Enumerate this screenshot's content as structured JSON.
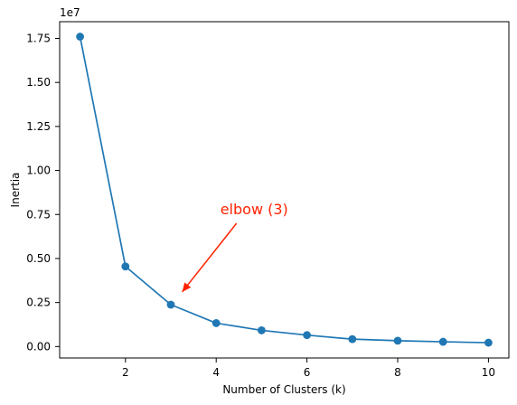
{
  "chart_data": {
    "type": "line",
    "title": "",
    "xlabel": "Number of Clusters (k)",
    "ylabel": "Inertia",
    "y_scale_label": "1e7",
    "x": [
      1,
      2,
      3,
      4,
      5,
      6,
      7,
      8,
      9,
      10
    ],
    "series": [
      {
        "values": [
          17600000,
          4550000,
          2380000,
          1330000,
          920000,
          650000,
          420000,
          330000,
          270000,
          220000
        ],
        "color": "#1f77b4"
      }
    ],
    "xlim": [
      0.55,
      10.45
    ],
    "ylim": [
      -650000,
      18450000
    ],
    "xticks": [
      2,
      4,
      6,
      8,
      10
    ],
    "yticks": [
      0,
      2500000,
      5000000,
      7500000,
      10000000,
      12500000,
      15000000,
      17500000
    ],
    "ytick_labels": [
      "0.00",
      "0.25",
      "0.50",
      "0.75",
      "1.00",
      "1.25",
      "1.50",
      "1.75"
    ],
    "grid": false,
    "annotation": {
      "text": "elbow (3)",
      "color": "#ff2200",
      "target": [
        3.25,
        3100000
      ],
      "text_anchor_point": [
        4.05,
        7000000
      ]
    }
  }
}
